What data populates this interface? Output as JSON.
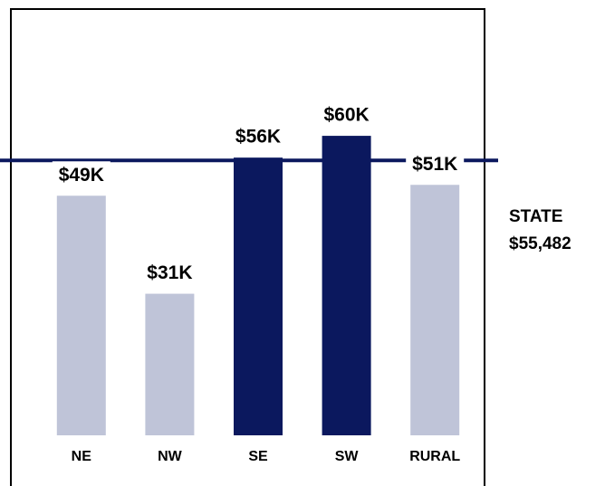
{
  "chart_data": {
    "type": "bar",
    "categories": [
      "NE",
      "NW",
      "SE",
      "SW",
      "RURAL"
    ],
    "values": [
      49000,
      31000,
      56000,
      60000,
      51000
    ],
    "value_labels": [
      "$49K",
      "$31K",
      "$56K",
      "$60K",
      "$51K"
    ],
    "colors": [
      "#bfc4d8",
      "#bfc4d8",
      "#0b185e",
      "#0b185e",
      "#bfc4d8"
    ],
    "ylim": [
      5000,
      65000
    ],
    "reference": {
      "label": "STATE",
      "value": 55482,
      "value_label": "$55,482",
      "color": "#0b185e"
    }
  }
}
